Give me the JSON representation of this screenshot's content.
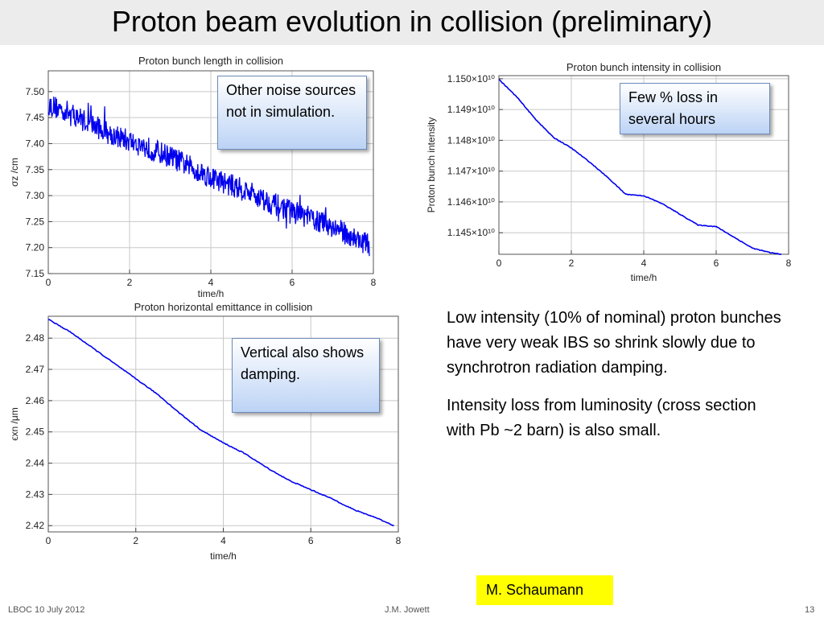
{
  "slide": {
    "title": "Proton beam evolution in collision (preliminary)",
    "callouts": {
      "noise": "Other noise sources not in simulation.",
      "intensity": "Few % loss in several hours",
      "vertical": "Vertical also shows damping."
    },
    "paragraphs": [
      "Low intensity (10% of nominal) proton bunches have very weak IBS so shrink slowly due to synchrotron radiation damping.",
      "Intensity loss from luminosity (cross section with Pb ~2 barn) is also small."
    ],
    "author": "M. Schaumann",
    "footer": {
      "left": "LBOC 10 July 2012",
      "center": "J.M. Jowett",
      "page": "13"
    }
  },
  "colors": {
    "line": "#0000ee",
    "grid": "#c8c8c8",
    "callout_border": "#6d8ab8",
    "highlight": "#ffff00"
  },
  "chart_data": [
    {
      "id": "length",
      "type": "line",
      "title": "Proton bunch length in collision",
      "xlabel": "time/h",
      "ylabel": "σz /cm",
      "xlim": [
        0,
        8
      ],
      "ylim": [
        7.15,
        7.54
      ],
      "xticks": [
        0,
        2,
        4,
        6,
        8
      ],
      "yticks": [
        7.15,
        7.2,
        7.25,
        7.3,
        7.35,
        7.4,
        7.45,
        7.5
      ],
      "ytick_labels": [
        "7.15",
        "7.20",
        "7.25",
        "7.30",
        "7.35",
        "7.40",
        "7.45",
        "7.50"
      ],
      "grid": true,
      "noisy": true,
      "noise_amplitude": 0.022,
      "series": [
        {
          "x": [
            0,
            0.5,
            1,
            1.5,
            2,
            2.5,
            3,
            3.5,
            4,
            4.5,
            5,
            5.5,
            6,
            6.5,
            7,
            7.5,
            7.9
          ],
          "y": [
            7.475,
            7.46,
            7.44,
            7.42,
            7.405,
            7.39,
            7.375,
            7.355,
            7.335,
            7.32,
            7.305,
            7.285,
            7.27,
            7.255,
            7.24,
            7.22,
            7.205
          ]
        }
      ]
    },
    {
      "id": "intensity",
      "type": "line",
      "title": "Proton bunch intensity in collision",
      "xlabel": "time/h",
      "ylabel": "Proton bunch  intensity",
      "xlim": [
        0,
        8
      ],
      "ylim": [
        1.1443,
        1.1501
      ],
      "xticks": [
        0,
        2,
        4,
        6,
        8
      ],
      "yticks": [
        1.145,
        1.146,
        1.147,
        1.148,
        1.149,
        1.15
      ],
      "ytick_labels": [
        "1.145×10¹⁰",
        "1.146×10¹⁰",
        "1.147×10¹⁰",
        "1.148×10¹⁰",
        "1.149×10¹⁰",
        "1.150×10¹⁰"
      ],
      "grid": true,
      "noisy": false,
      "series": [
        {
          "x": [
            0,
            0.5,
            1,
            1.5,
            2,
            2.5,
            3,
            3.5,
            4,
            4.5,
            5,
            5.5,
            6,
            6.5,
            7,
            7.5,
            7.8
          ],
          "y": [
            1.14998,
            1.1494,
            1.1487,
            1.1481,
            1.14775,
            1.1473,
            1.1468,
            1.14625,
            1.1462,
            1.14595,
            1.1456,
            1.14525,
            1.1452,
            1.14485,
            1.1445,
            1.14435,
            1.1443
          ]
        }
      ]
    },
    {
      "id": "emittance",
      "type": "line",
      "title": "Proton horizontal emittance in collision",
      "xlabel": "time/h",
      "ylabel": "ϵxn /μm",
      "xlim": [
        0,
        8
      ],
      "ylim": [
        2.418,
        2.487
      ],
      "xticks": [
        0,
        2,
        4,
        6,
        8
      ],
      "yticks": [
        2.42,
        2.43,
        2.44,
        2.45,
        2.46,
        2.47,
        2.48
      ],
      "ytick_labels": [
        "2.42",
        "2.43",
        "2.44",
        "2.45",
        "2.46",
        "2.47",
        "2.48"
      ],
      "grid": true,
      "noisy": false,
      "series": [
        {
          "x": [
            0,
            0.5,
            1,
            1.5,
            2,
            2.5,
            3,
            3.5,
            4,
            4.5,
            5,
            5.5,
            6,
            6.5,
            7,
            7.5,
            7.9
          ],
          "y": [
            2.486,
            2.482,
            2.477,
            2.472,
            2.467,
            2.462,
            2.456,
            2.4505,
            2.4465,
            2.443,
            2.4385,
            2.4345,
            2.4315,
            2.4285,
            2.425,
            2.4225,
            2.42
          ]
        }
      ]
    }
  ]
}
